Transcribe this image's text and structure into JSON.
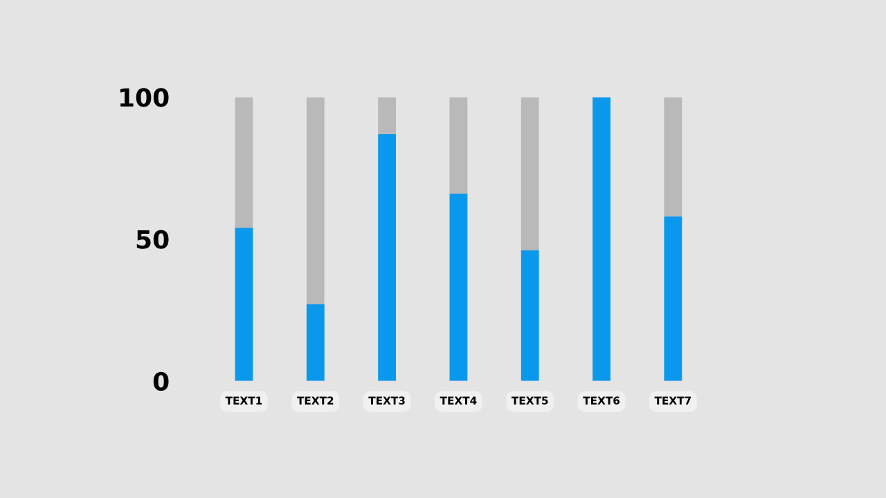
{
  "chart_data": {
    "type": "bar",
    "stacked": true,
    "categories": [
      "TEXT1",
      "TEXT2",
      "TEXT3",
      "TEXT4",
      "TEXT5",
      "TEXT6",
      "TEXT7"
    ],
    "series": [
      {
        "color": "#0a98ec",
        "values": [
          54,
          27,
          87,
          66,
          46,
          100,
          58
        ]
      },
      {
        "color": "#b9b9b9",
        "values": [
          46,
          73,
          13,
          34,
          54,
          0,
          42
        ]
      }
    ],
    "ylim": [
      0,
      100
    ],
    "yticks": [
      0,
      50,
      100
    ],
    "grid": false
  }
}
